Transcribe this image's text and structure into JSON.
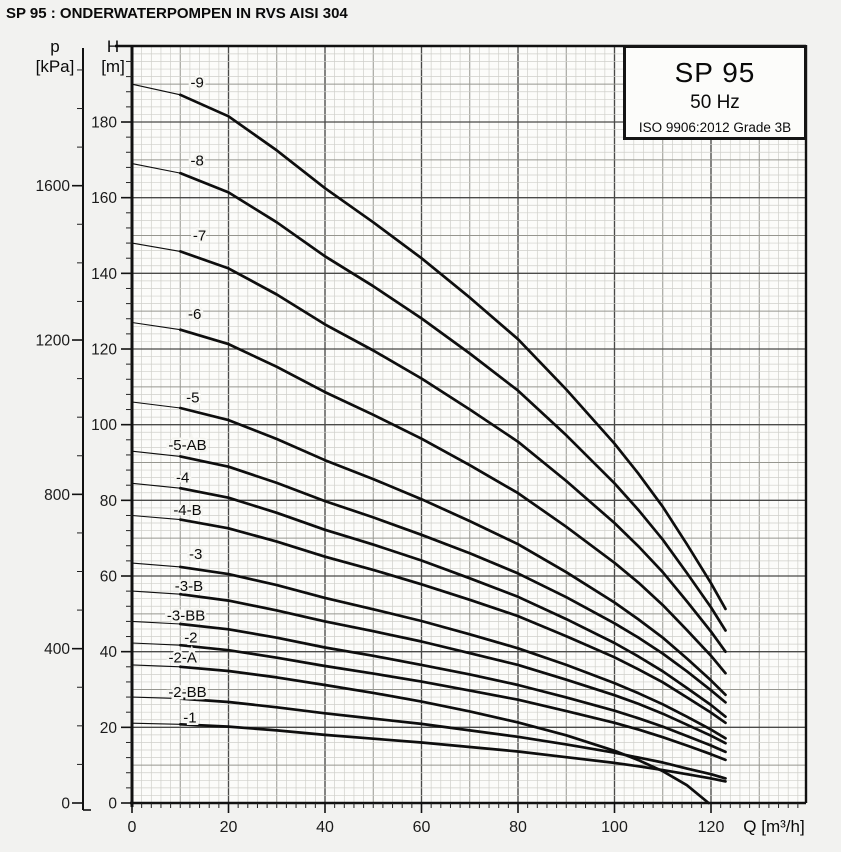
{
  "page": {
    "title": "SP 95 : ONDERWATERPOMPEN IN RVS AISI 304"
  },
  "legend": {
    "model": "SP 95",
    "frequency": "50 Hz",
    "standard": "ISO 9906:2012 Grade 3B"
  },
  "axes": {
    "pressure": {
      "symbol": "p",
      "unit": "[kPa]",
      "major_ticks": [
        0,
        400,
        800,
        1200,
        1600
      ],
      "minor_step_kpa": 100,
      "max_kpa": 1900
    },
    "head": {
      "symbol": "H",
      "unit": "[m]",
      "major_ticks": [
        0,
        20,
        40,
        60,
        80,
        100,
        120,
        140,
        160,
        180
      ],
      "minor_step_m": 4,
      "max_m": 200
    },
    "flow": {
      "label": "Q [m³/h]",
      "major_ticks": [
        0,
        20,
        40,
        60,
        80,
        100,
        120
      ],
      "minor_step": 2,
      "max": 140
    }
  },
  "chart_data": {
    "type": "line",
    "title": "SP 95 50 Hz pump head curves",
    "xlabel": "Q [m³/h]",
    "ylabel": "H [m]",
    "xlim": [
      0,
      140
    ],
    "ylim": [
      0,
      200
    ],
    "grid": "fine graph paper, minor 2 / medium 10 / major 20",
    "legend_position": "top-right box",
    "curve_color": "#0e0e0e",
    "series": [
      {
        "name": "-9",
        "label_q": 13.5,
        "label_h": 190.5,
        "points": [
          [
            0,
            190
          ],
          [
            10,
            187.2
          ],
          [
            20,
            181.5
          ],
          [
            30,
            172.5
          ],
          [
            40,
            162.5
          ],
          [
            50,
            153.5
          ],
          [
            60,
            144
          ],
          [
            70,
            133.6
          ],
          [
            80,
            122.6
          ],
          [
            90,
            109.3
          ],
          [
            100,
            95
          ],
          [
            105,
            87
          ],
          [
            110,
            78.3
          ],
          [
            115,
            68.4
          ],
          [
            120,
            58.1
          ],
          [
            123,
            51.3
          ]
        ]
      },
      {
        "name": "-8",
        "label_q": 13.5,
        "label_h": 169.8,
        "points": [
          [
            0,
            169
          ],
          [
            10,
            166.5
          ],
          [
            20,
            161.4
          ],
          [
            30,
            153.5
          ],
          [
            40,
            144.5
          ],
          [
            50,
            136.6
          ],
          [
            60,
            128.1
          ],
          [
            70,
            118.8
          ],
          [
            80,
            109
          ],
          [
            90,
            97.2
          ],
          [
            100,
            84.5
          ],
          [
            105,
            77.4
          ],
          [
            110,
            69.6
          ],
          [
            115,
            60.8
          ],
          [
            120,
            51.7
          ],
          [
            123,
            45.6
          ]
        ]
      },
      {
        "name": "-7",
        "label_q": 14,
        "label_h": 150,
        "points": [
          [
            0,
            148
          ],
          [
            10,
            145.8
          ],
          [
            20,
            141.3
          ],
          [
            30,
            134.4
          ],
          [
            40,
            126.5
          ],
          [
            50,
            119.6
          ],
          [
            60,
            112.2
          ],
          [
            70,
            104
          ],
          [
            80,
            95.5
          ],
          [
            90,
            85.1
          ],
          [
            100,
            74
          ],
          [
            105,
            67.8
          ],
          [
            110,
            61
          ],
          [
            115,
            53.3
          ],
          [
            120,
            45.3
          ],
          [
            123,
            40
          ]
        ]
      },
      {
        "name": "-6",
        "label_q": 13,
        "label_h": 129.2,
        "points": [
          [
            0,
            127
          ],
          [
            10,
            125.1
          ],
          [
            20,
            121.3
          ],
          [
            30,
            115.3
          ],
          [
            40,
            108.6
          ],
          [
            50,
            102.6
          ],
          [
            60,
            96.3
          ],
          [
            70,
            89.3
          ],
          [
            80,
            81.9
          ],
          [
            90,
            73
          ],
          [
            100,
            63.5
          ],
          [
            105,
            58.2
          ],
          [
            110,
            52.3
          ],
          [
            115,
            45.7
          ],
          [
            120,
            38.9
          ],
          [
            123,
            34.3
          ]
        ]
      },
      {
        "name": "-5",
        "label_q": 12.6,
        "label_h": 107.2,
        "points": [
          [
            0,
            106
          ],
          [
            10,
            104.4
          ],
          [
            20,
            101.2
          ],
          [
            30,
            96.2
          ],
          [
            40,
            90.6
          ],
          [
            50,
            85.6
          ],
          [
            60,
            80.3
          ],
          [
            70,
            74.5
          ],
          [
            80,
            68.4
          ],
          [
            90,
            61
          ],
          [
            100,
            53
          ],
          [
            105,
            48.5
          ],
          [
            110,
            43.7
          ],
          [
            115,
            38.2
          ],
          [
            120,
            32.4
          ],
          [
            123,
            28.6
          ]
        ]
      },
      {
        "name": "-5-AB",
        "label_q": 11.5,
        "label_h": 94.6,
        "points": [
          [
            0,
            93
          ],
          [
            10,
            91.6
          ],
          [
            20,
            88.9
          ],
          [
            30,
            84.6
          ],
          [
            40,
            79.8
          ],
          [
            50,
            75.5
          ],
          [
            60,
            70.9
          ],
          [
            70,
            66
          ],
          [
            80,
            60.7
          ],
          [
            90,
            54.4
          ],
          [
            100,
            47.5
          ],
          [
            105,
            43.7
          ],
          [
            110,
            39.5
          ],
          [
            115,
            34.8
          ],
          [
            120,
            29.8
          ],
          [
            123,
            26.6
          ]
        ]
      },
      {
        "name": "-4",
        "label_q": 10.5,
        "label_h": 86,
        "points": [
          [
            0,
            84.5
          ],
          [
            10,
            83.2
          ],
          [
            20,
            80.7
          ],
          [
            30,
            76.7
          ],
          [
            40,
            72.2
          ],
          [
            50,
            68.3
          ],
          [
            60,
            64.1
          ],
          [
            70,
            59.4
          ],
          [
            80,
            54.5
          ],
          [
            90,
            48.6
          ],
          [
            100,
            42.3
          ],
          [
            105,
            38.7
          ],
          [
            110,
            34.8
          ],
          [
            115,
            30.4
          ],
          [
            120,
            25.9
          ],
          [
            123,
            22.8
          ]
        ]
      },
      {
        "name": "-4-B",
        "label_q": 11.5,
        "label_h": 77.4,
        "points": [
          [
            0,
            76
          ],
          [
            10,
            74.9
          ],
          [
            20,
            72.6
          ],
          [
            30,
            69.1
          ],
          [
            40,
            65.1
          ],
          [
            50,
            61.6
          ],
          [
            60,
            57.8
          ],
          [
            70,
            53.7
          ],
          [
            80,
            49.4
          ],
          [
            90,
            44.1
          ],
          [
            100,
            38.5
          ],
          [
            105,
            35.3
          ],
          [
            110,
            31.9
          ],
          [
            115,
            27.9
          ],
          [
            120,
            23.9
          ],
          [
            123,
            21.2
          ]
        ]
      },
      {
        "name": "-3",
        "label_q": 13.2,
        "label_h": 65.8,
        "points": [
          [
            0,
            63.4
          ],
          [
            10,
            62.4
          ],
          [
            20,
            60.5
          ],
          [
            30,
            57.6
          ],
          [
            40,
            54.2
          ],
          [
            50,
            51.2
          ],
          [
            60,
            48.1
          ],
          [
            70,
            44.6
          ],
          [
            80,
            40.9
          ],
          [
            90,
            36.5
          ],
          [
            100,
            31.7
          ],
          [
            105,
            29
          ],
          [
            110,
            26.1
          ],
          [
            115,
            22.8
          ],
          [
            120,
            19.4
          ],
          [
            123,
            17.1
          ]
        ]
      },
      {
        "name": "-3-B",
        "label_q": 11.8,
        "label_h": 57.4,
        "points": [
          [
            0,
            56
          ],
          [
            10,
            55.2
          ],
          [
            20,
            53.5
          ],
          [
            30,
            50.9
          ],
          [
            40,
            48
          ],
          [
            50,
            45.4
          ],
          [
            60,
            42.7
          ],
          [
            70,
            39.6
          ],
          [
            80,
            36.5
          ],
          [
            90,
            32.6
          ],
          [
            100,
            28.5
          ],
          [
            105,
            26.2
          ],
          [
            110,
            23.6
          ],
          [
            115,
            20.7
          ],
          [
            120,
            17.8
          ],
          [
            123,
            15.8
          ]
        ]
      },
      {
        "name": "-3-BB",
        "label_q": 11.2,
        "label_h": 49.6,
        "points": [
          [
            0,
            48
          ],
          [
            10,
            47.3
          ],
          [
            20,
            45.9
          ],
          [
            30,
            43.7
          ],
          [
            40,
            41.1
          ],
          [
            50,
            38.9
          ],
          [
            60,
            36.5
          ],
          [
            70,
            34
          ],
          [
            80,
            31.2
          ],
          [
            90,
            27.9
          ],
          [
            100,
            24.4
          ],
          [
            105,
            22.4
          ],
          [
            110,
            20.2
          ],
          [
            115,
            17.7
          ],
          [
            120,
            15.2
          ],
          [
            123,
            13.5
          ]
        ]
      },
      {
        "name": "-2",
        "label_q": 12.2,
        "label_h": 43.8,
        "points": [
          [
            0,
            42.3
          ],
          [
            10,
            41.7
          ],
          [
            20,
            40.4
          ],
          [
            30,
            38.4
          ],
          [
            40,
            36.2
          ],
          [
            50,
            34.2
          ],
          [
            60,
            32.1
          ],
          [
            70,
            29.7
          ],
          [
            80,
            27.3
          ],
          [
            90,
            24.3
          ],
          [
            100,
            21.2
          ],
          [
            105,
            19.4
          ],
          [
            110,
            17.4
          ],
          [
            115,
            15.2
          ],
          [
            120,
            12.9
          ],
          [
            123,
            11.4
          ]
        ]
      },
      {
        "name": "-2-A",
        "label_q": 10.5,
        "label_h": 38.4,
        "points": [
          [
            0,
            36.5
          ],
          [
            10,
            36
          ],
          [
            20,
            34.9
          ],
          [
            30,
            33.2
          ],
          [
            40,
            31.2
          ],
          [
            50,
            29.1
          ],
          [
            60,
            26.8
          ],
          [
            70,
            24.2
          ],
          [
            80,
            21.3
          ],
          [
            90,
            17.9
          ],
          [
            100,
            13.8
          ],
          [
            105,
            11.3
          ],
          [
            110,
            8.4
          ],
          [
            115,
            4.7
          ],
          [
            119.5,
            0
          ]
        ]
      },
      {
        "name": "-2-BB",
        "label_q": 11.5,
        "label_h": 29.3,
        "points": [
          [
            0,
            28
          ],
          [
            10,
            27.6
          ],
          [
            20,
            26.7
          ],
          [
            30,
            25.3
          ],
          [
            40,
            23.7
          ],
          [
            50,
            22.3
          ],
          [
            60,
            20.9
          ],
          [
            70,
            19.2
          ],
          [
            80,
            17.5
          ],
          [
            90,
            15.5
          ],
          [
            100,
            13.3
          ],
          [
            105,
            12
          ],
          [
            110,
            10.7
          ],
          [
            115,
            9.1
          ],
          [
            120,
            7.6
          ],
          [
            123,
            6.5
          ]
        ]
      },
      {
        "name": "-1",
        "label_q": 12,
        "label_h": 22.6,
        "points": [
          [
            0,
            21.1
          ],
          [
            10,
            20.8
          ],
          [
            20,
            20.2
          ],
          [
            30,
            19.2
          ],
          [
            40,
            18
          ],
          [
            50,
            17
          ],
          [
            60,
            16
          ],
          [
            70,
            14.8
          ],
          [
            80,
            13.6
          ],
          [
            90,
            12.1
          ],
          [
            100,
            10.6
          ],
          [
            105,
            9.7
          ],
          [
            110,
            8.7
          ],
          [
            115,
            7.6
          ],
          [
            120,
            6.5
          ],
          [
            123,
            5.7
          ]
        ]
      }
    ]
  }
}
